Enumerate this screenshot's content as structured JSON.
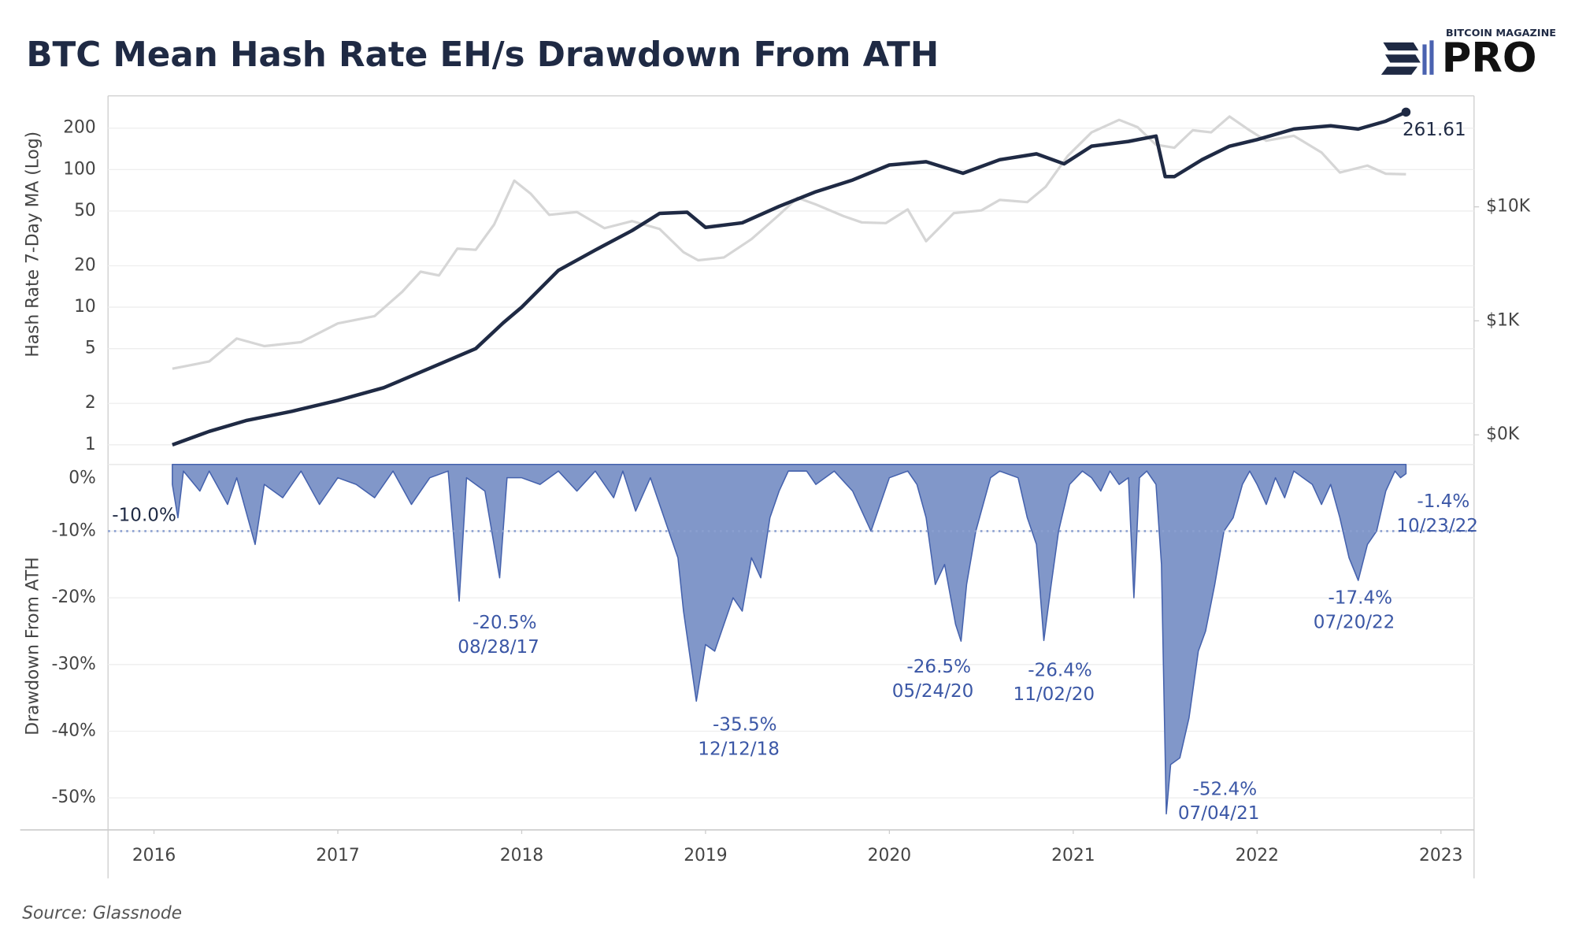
{
  "title": "BTC Mean Hash Rate EH/s Drawdown From ATH",
  "logo": {
    "top": "BITCOIN MAGAZINE",
    "main": "PRO"
  },
  "source": "Source: Glassnode",
  "chart_data": [
    {
      "type": "line",
      "ylabel": "Hash Rate 7-Day MA (Log)",
      "log_scale": true,
      "xlim": [
        2015.75,
        2023.18
      ],
      "ylim": [
        0.72,
        343
      ],
      "yticks": [
        1,
        2,
        5,
        10,
        20,
        50,
        100,
        200
      ],
      "y2lim": [
        55,
        94000
      ],
      "y2ticks": [
        {
          "value": 100,
          "label": "$0K"
        },
        {
          "value": 1000,
          "label": "$1K"
        },
        {
          "value": 10000,
          "label": "$10K"
        }
      ],
      "grid": true,
      "series": [
        {
          "color": "#1f2a44",
          "x": [
            2016.1,
            2016.3,
            2016.5,
            2016.75,
            2017.0,
            2017.25,
            2017.5,
            2017.75,
            2017.9,
            2018.0,
            2018.2,
            2018.4,
            2018.6,
            2018.75,
            2018.9,
            2019.0,
            2019.2,
            2019.4,
            2019.6,
            2019.8,
            2020.0,
            2020.2,
            2020.4,
            2020.6,
            2020.8,
            2020.95,
            2021.1,
            2021.3,
            2021.45,
            2021.5,
            2021.55,
            2021.7,
            2021.85,
            2022.0,
            2022.2,
            2022.4,
            2022.55,
            2022.7,
            2022.81
          ],
          "values": [
            1.0,
            1.25,
            1.5,
            1.75,
            2.1,
            2.6,
            3.6,
            5.0,
            7.7,
            10,
            18.5,
            26,
            36,
            48,
            49,
            38,
            41,
            54,
            69,
            84,
            108,
            114,
            94,
            118,
            130,
            110,
            148,
            160,
            175,
            89,
            89,
            118,
            148,
            165,
            197,
            208,
            197,
            225,
            261.61
          ]
        },
        {
          "color": "#d6d6d6",
          "axis": "y2",
          "x": [
            2016.1,
            2016.3,
            2016.45,
            2016.6,
            2016.8,
            2017.0,
            2017.2,
            2017.35,
            2017.45,
            2017.55,
            2017.65,
            2017.75,
            2017.85,
            2017.96,
            2018.05,
            2018.15,
            2018.3,
            2018.45,
            2018.6,
            2018.75,
            2018.88,
            2018.96,
            2019.1,
            2019.25,
            2019.4,
            2019.5,
            2019.6,
            2019.75,
            2019.85,
            2019.98,
            2020.1,
            2020.2,
            2020.35,
            2020.5,
            2020.6,
            2020.75,
            2020.85,
            2020.97,
            2021.1,
            2021.25,
            2021.35,
            2021.45,
            2021.55,
            2021.65,
            2021.75,
            2021.85,
            2021.95,
            2022.05,
            2022.2,
            2022.35,
            2022.45,
            2022.6,
            2022.7,
            2022.81
          ],
          "values": [
            380,
            440,
            700,
            600,
            650,
            950,
            1100,
            1800,
            2700,
            2500,
            4300,
            4200,
            7000,
            17000,
            13000,
            8500,
            9000,
            6500,
            7500,
            6400,
            4000,
            3400,
            3600,
            5200,
            8500,
            12000,
            10500,
            8300,
            7300,
            7200,
            9500,
            5000,
            8800,
            9300,
            11500,
            11000,
            15000,
            28000,
            45000,
            58000,
            50000,
            35000,
            33000,
            47000,
            45000,
            62000,
            48000,
            38000,
            42000,
            30000,
            20000,
            23000,
            19500,
            19300
          ]
        }
      ],
      "annotations": [
        {
          "x": 2022.81,
          "value": 261.61,
          "label": "261.61"
        }
      ]
    },
    {
      "type": "area",
      "ylabel": "Drawdown From ATH",
      "xlim": [
        2015.75,
        2023.18
      ],
      "xticks": [
        2016,
        2017,
        2018,
        2019,
        2020,
        2021,
        2022,
        2023
      ],
      "ylim": [
        -54.8,
        0
      ],
      "yticks": [
        {
          "value": 0,
          "label": "0%"
        },
        {
          "value": -10,
          "label": "-10%"
        },
        {
          "value": -20,
          "label": "-20%"
        },
        {
          "value": -30,
          "label": "-30%"
        },
        {
          "value": -40,
          "label": "-40%"
        },
        {
          "value": -50,
          "label": "-50%"
        }
      ],
      "grid": true,
      "color": "#8197c9",
      "line_color": "#4562ad",
      "x": [
        2016.1,
        2016.13,
        2016.16,
        2016.25,
        2016.3,
        2016.4,
        2016.45,
        2016.55,
        2016.6,
        2016.7,
        2016.8,
        2016.9,
        2017.0,
        2017.1,
        2017.2,
        2017.3,
        2017.4,
        2017.5,
        2017.6,
        2017.66,
        2017.7,
        2017.8,
        2017.88,
        2017.92,
        2018.0,
        2018.1,
        2018.2,
        2018.3,
        2018.4,
        2018.5,
        2018.55,
        2018.62,
        2018.7,
        2018.8,
        2018.85,
        2018.88,
        2018.95,
        2019.0,
        2019.05,
        2019.1,
        2019.15,
        2019.2,
        2019.25,
        2019.3,
        2019.35,
        2019.4,
        2019.45,
        2019.55,
        2019.6,
        2019.7,
        2019.8,
        2019.9,
        2019.95,
        2020.0,
        2020.1,
        2020.15,
        2020.2,
        2020.25,
        2020.3,
        2020.36,
        2020.39,
        2020.42,
        2020.47,
        2020.55,
        2020.6,
        2020.7,
        2020.75,
        2020.8,
        2020.84,
        2020.88,
        2020.92,
        2020.98,
        2021.05,
        2021.1,
        2021.15,
        2021.2,
        2021.25,
        2021.3,
        2021.33,
        2021.36,
        2021.4,
        2021.45,
        2021.48,
        2021.49,
        2021.506,
        2021.53,
        2021.58,
        2021.63,
        2021.68,
        2021.72,
        2021.77,
        2021.82,
        2021.87,
        2021.92,
        2021.96,
        2022.0,
        2022.05,
        2022.1,
        2022.15,
        2022.2,
        2022.3,
        2022.35,
        2022.4,
        2022.45,
        2022.5,
        2022.55,
        2022.6,
        2022.65,
        2022.7,
        2022.75,
        2022.78,
        2022.81
      ],
      "values": [
        -3,
        -8,
        -1,
        -4,
        -1,
        -6,
        -2,
        -12,
        -3,
        -5,
        -1,
        -6,
        -2,
        -3,
        -5,
        -1,
        -6,
        -2,
        -1,
        -20.5,
        -2,
        -4,
        -17,
        -2,
        -2,
        -3,
        -1,
        -4,
        -1,
        -5,
        -1,
        -7,
        -2,
        -10,
        -14,
        -22,
        -35.5,
        -27,
        -28,
        -24,
        -20,
        -22,
        -14,
        -17,
        -8,
        -4,
        -1,
        -1,
        -3,
        -1,
        -4,
        -10,
        -6,
        -2,
        -1,
        -3,
        -8,
        -18,
        -15,
        -24,
        -26.5,
        -18,
        -10,
        -2,
        -1,
        -2,
        -8,
        -12,
        -26.4,
        -18,
        -10,
        -3,
        -1,
        -2,
        -4,
        -1,
        -3,
        -2,
        -20,
        -2,
        -1,
        -3,
        -15,
        -30,
        -52.4,
        -45,
        -44,
        -38,
        -28,
        -25,
        -18,
        -10,
        -8,
        -3,
        -1,
        -3,
        -6,
        -2,
        -5,
        -1,
        -3,
        -6,
        -3,
        -8,
        -14,
        -17.4,
        -12,
        -10,
        -4,
        -1,
        -2,
        -1.4
      ],
      "reference_line": {
        "value": -10,
        "label": "-10.0%"
      },
      "annotations": [
        {
          "x": 2017.66,
          "value": -20.5,
          "label": "-20.5%",
          "date": "08/28/17"
        },
        {
          "x": 2018.95,
          "value": -35.5,
          "label": "-35.5%",
          "date": "12/12/18"
        },
        {
          "x": 2020.39,
          "value": -26.5,
          "label": "-26.5%",
          "date": "05/24/20"
        },
        {
          "x": 2020.84,
          "value": -26.4,
          "label": "-26.4%",
          "date": "11/02/20"
        },
        {
          "x": 2021.506,
          "value": -52.4,
          "label": "-52.4%",
          "date": "07/04/21"
        },
        {
          "x": 2022.55,
          "value": -17.4,
          "label": "-17.4%",
          "date": "07/20/22"
        },
        {
          "x": 2022.81,
          "value": -1.4,
          "label": "-1.4%",
          "date": "10/23/22"
        }
      ]
    }
  ]
}
